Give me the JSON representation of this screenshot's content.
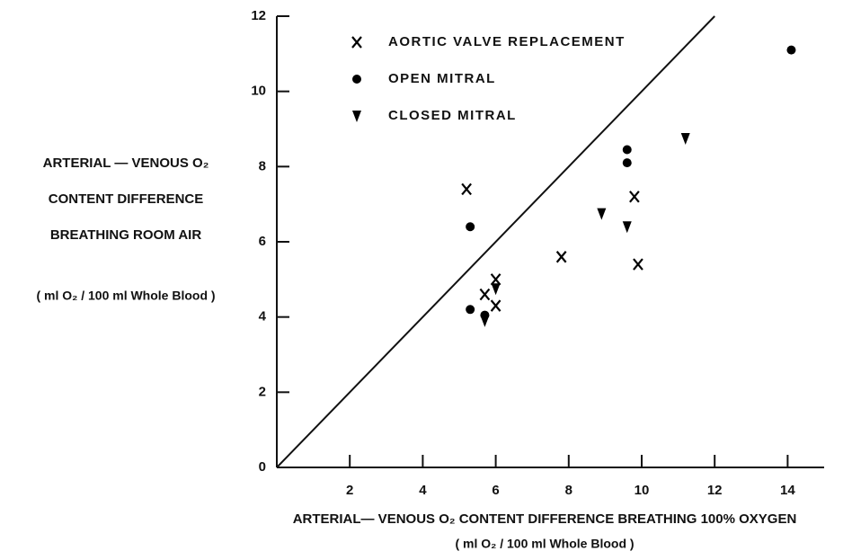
{
  "chart_data": {
    "type": "scatter",
    "xlabel": [
      "ARTERIAL— VENOUS O₂  CONTENT DIFFERENCE BREATHING 100% OXYGEN",
      "( ml O₂ / 100 ml Whole Blood )"
    ],
    "ylabel": [
      "ARTERIAL — VENOUS O₂",
      "CONTENT DIFFERENCE",
      "BREATHING ROOM AIR",
      "( ml O₂ / 100 ml Whole Blood )"
    ],
    "xlim": [
      0,
      15
    ],
    "ylim": [
      0,
      12
    ],
    "xticks": [
      2,
      4,
      6,
      8,
      10,
      12,
      14
    ],
    "yticks": [
      0,
      2,
      4,
      6,
      8,
      10,
      12
    ],
    "identity_line": true,
    "legend": "upper left",
    "series": [
      {
        "name": "AORTIC VALVE REPLACEMENT",
        "marker": "x",
        "color": "#000000",
        "x": [
          5.2,
          5.7,
          6.0,
          6.0,
          7.8,
          9.8,
          9.9
        ],
        "values": [
          7.4,
          4.6,
          5.0,
          4.3,
          5.6,
          7.2,
          5.4
        ]
      },
      {
        "name": "OPEN MITRAL",
        "marker": "o",
        "color": "#000000",
        "x": [
          5.3,
          5.3,
          5.7,
          9.6,
          9.6,
          14.1
        ],
        "values": [
          6.4,
          4.2,
          4.05,
          8.45,
          8.1,
          11.1
        ]
      },
      {
        "name": "CLOSED MITRAL",
        "marker": "v",
        "color": "#000000",
        "x": [
          5.7,
          6.0,
          8.9,
          9.6,
          11.2
        ],
        "values": [
          3.9,
          4.75,
          6.75,
          6.4,
          8.75
        ]
      }
    ]
  }
}
